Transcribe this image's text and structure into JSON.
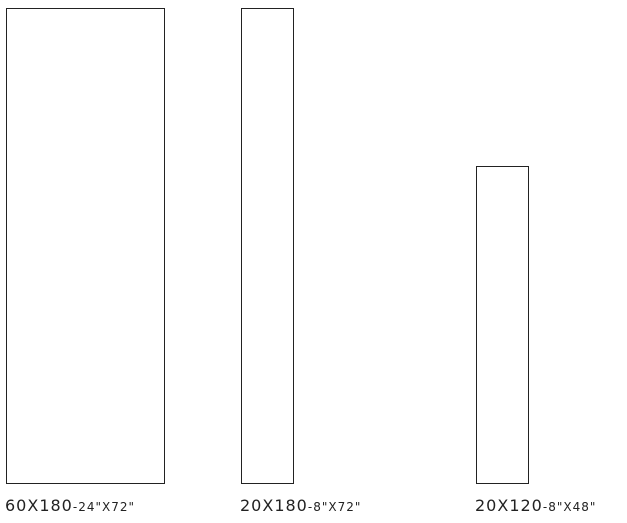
{
  "tiles": [
    {
      "metric": "60X180",
      "imperial": "-24\"X72\"",
      "width_cm": 60,
      "height_cm": 180
    },
    {
      "metric": "20X180",
      "imperial": "-8\"X72\"",
      "width_cm": 20,
      "height_cm": 180
    },
    {
      "metric": "20X120",
      "imperial": "-8\"X48\"",
      "width_cm": 20,
      "height_cm": 120
    }
  ]
}
